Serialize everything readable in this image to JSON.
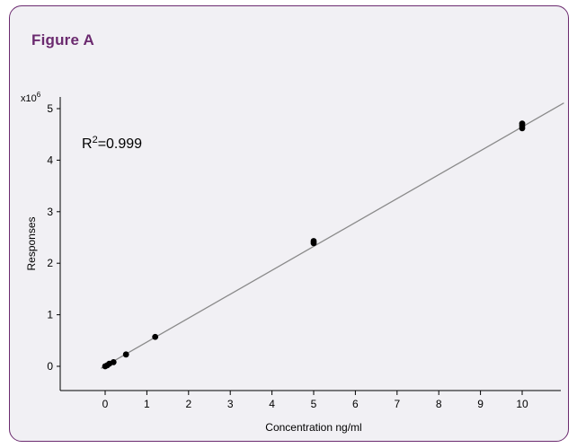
{
  "figure": {
    "label": "Figure A"
  },
  "chart_data": {
    "type": "scatter",
    "title": "",
    "xlabel": "Concentration ng/ml",
    "ylabel": "Responses",
    "y_multiplier_prefix": "x10",
    "y_multiplier_exponent": "6",
    "annotation": {
      "prefix": "R",
      "superscript": "2",
      "suffix": "=0.999"
    },
    "xlim": [
      -1,
      11
    ],
    "ylim": [
      -0.5,
      5.2
    ],
    "x_ticks": [
      0,
      1,
      2,
      3,
      4,
      5,
      6,
      7,
      8,
      9,
      10
    ],
    "y_ticks": [
      0,
      1,
      2,
      3,
      4,
      5
    ],
    "grid": false,
    "legend": "none",
    "series": [
      {
        "points": [
          {
            "x": 0.0,
            "y": 0.0
          },
          {
            "x": 0.05,
            "y": 0.02
          },
          {
            "x": 0.1,
            "y": 0.05
          },
          {
            "x": 0.2,
            "y": 0.08
          },
          {
            "x": 0.5,
            "y": 0.23
          },
          {
            "x": 1.2,
            "y": 0.57
          },
          {
            "x": 5.0,
            "y": 2.39
          },
          {
            "x": 5.0,
            "y": 2.43
          },
          {
            "x": 10.0,
            "y": 4.62
          },
          {
            "x": 10.0,
            "y": 4.67
          },
          {
            "x": 10.0,
            "y": 4.71
          }
        ]
      }
    ],
    "fit_line": {
      "x_start": -0.1,
      "y_start": -0.04,
      "x_end": 11.0,
      "y_end": 5.11
    },
    "colors": {
      "axis": "#000000",
      "marker": "#000000",
      "fit_line": "#8a8a8a",
      "panel_border": "#6b2a6f",
      "panel_fill": "#f1f0f4",
      "title": "#6b2a6f"
    }
  }
}
